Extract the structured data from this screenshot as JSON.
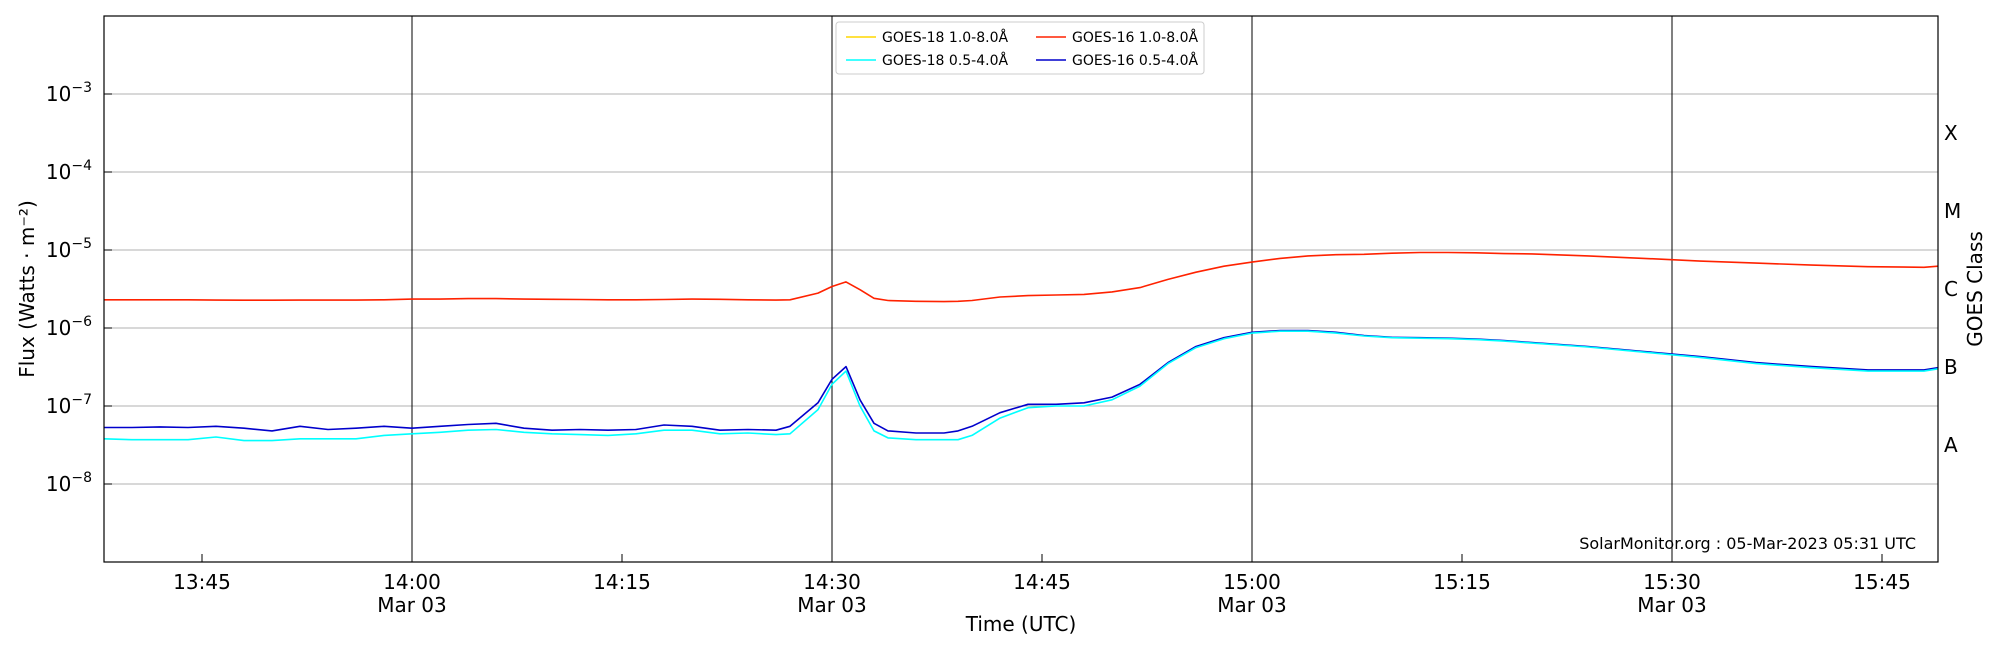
{
  "chart_data": {
    "type": "line",
    "title": "",
    "xlabel": "Time (UTC)",
    "ylabel": "Flux (Watts · m⁻²)",
    "y2label": "GOES Class",
    "yscale": "log",
    "ylim": [
      1e-09,
      0.01
    ],
    "xlim": [
      "13:38",
      "15:49"
    ],
    "grid": "horizontal",
    "legend_position": "top-center",
    "credit": "SolarMonitor.org : 05-Mar-2023 05:31 UTC",
    "x_ticks": [
      {
        "time": "13:45",
        "date": ""
      },
      {
        "time": "14:00",
        "date": "Mar 03"
      },
      {
        "time": "14:15",
        "date": ""
      },
      {
        "time": "14:30",
        "date": "Mar 03"
      },
      {
        "time": "14:45",
        "date": ""
      },
      {
        "time": "15:00",
        "date": "Mar 03"
      },
      {
        "time": "15:15",
        "date": ""
      },
      {
        "time": "15:30",
        "date": "Mar 03"
      },
      {
        "time": "15:45",
        "date": ""
      }
    ],
    "day_lines": [
      "14:00",
      "14:30",
      "15:00",
      "15:30"
    ],
    "y_ticks": [
      {
        "value": 1e-08,
        "base": "10",
        "exp": "−8"
      },
      {
        "value": 1e-07,
        "base": "10",
        "exp": "−7"
      },
      {
        "value": 1e-06,
        "base": "10",
        "exp": "−6"
      },
      {
        "value": 1e-05,
        "base": "10",
        "exp": "−5"
      },
      {
        "value": 0.0001,
        "base": "10",
        "exp": "−4"
      },
      {
        "value": 0.001,
        "base": "10",
        "exp": "−3"
      }
    ],
    "goes_classes": [
      {
        "label": "A",
        "value": 3.16e-08
      },
      {
        "label": "B",
        "value": 3.16e-07
      },
      {
        "label": "C",
        "value": 3.16e-06
      },
      {
        "label": "M",
        "value": 3.16e-05
      },
      {
        "label": "X",
        "value": 0.000316
      }
    ],
    "legend": [
      {
        "name": "GOES-18 1.0-8.0Å",
        "color": "#ffd700"
      },
      {
        "name": "GOES-16 1.0-8.0Å",
        "color": "#ff2200"
      },
      {
        "name": "GOES-18 0.5-4.0Å",
        "color": "#00ffff"
      },
      {
        "name": "GOES-16 0.5-4.0Å",
        "color": "#0000cc"
      }
    ],
    "x": [
      "13:38",
      "13:40",
      "13:42",
      "13:44",
      "13:46",
      "13:48",
      "13:50",
      "13:52",
      "13:54",
      "13:56",
      "13:58",
      "14:00",
      "14:02",
      "14:04",
      "14:06",
      "14:08",
      "14:10",
      "14:12",
      "14:14",
      "14:16",
      "14:18",
      "14:20",
      "14:22",
      "14:24",
      "14:26",
      "14:27",
      "14:29",
      "14:30",
      "14:31",
      "14:32",
      "14:33",
      "14:34",
      "14:36",
      "14:38",
      "14:39",
      "14:40",
      "14:42",
      "14:44",
      "14:46",
      "14:48",
      "14:50",
      "14:52",
      "14:54",
      "14:56",
      "14:58",
      "15:00",
      "15:02",
      "15:04",
      "15:06",
      "15:08",
      "15:10",
      "15:12",
      "15:14",
      "15:16",
      "15:18",
      "15:20",
      "15:24",
      "15:28",
      "15:32",
      "15:36",
      "15:40",
      "15:44",
      "15:48",
      "15:49"
    ],
    "series": [
      {
        "name": "GOES-16 1.0-8.0Å",
        "color": "#ff2200",
        "values": [
          2.3e-06,
          2.3e-06,
          2.3e-06,
          2.3e-06,
          2.28e-06,
          2.27e-06,
          2.27e-06,
          2.28e-06,
          2.28e-06,
          2.28e-06,
          2.3e-06,
          2.35e-06,
          2.35e-06,
          2.38e-06,
          2.38e-06,
          2.35e-06,
          2.33e-06,
          2.32e-06,
          2.3e-06,
          2.3e-06,
          2.32e-06,
          2.35e-06,
          2.33e-06,
          2.3e-06,
          2.28e-06,
          2.3e-06,
          2.8e-06,
          3.4e-06,
          3.9e-06,
          3.1e-06,
          2.4e-06,
          2.25e-06,
          2.2e-06,
          2.18e-06,
          2.2e-06,
          2.25e-06,
          2.5e-06,
          2.6e-06,
          2.65e-06,
          2.7e-06,
          2.9e-06,
          3.3e-06,
          4.2e-06,
          5.2e-06,
          6.2e-06,
          7e-06,
          7.8e-06,
          8.4e-06,
          8.7e-06,
          8.8e-06,
          9.1e-06,
          9.3e-06,
          9.3e-06,
          9.2e-06,
          9e-06,
          8.9e-06,
          8.4e-06,
          7.8e-06,
          7.2e-06,
          6.8e-06,
          6.4e-06,
          6.1e-06,
          6e-06,
          6.2e-06
        ]
      },
      {
        "name": "GOES-16 0.5-4.0Å",
        "color": "#0000cc",
        "values": [
          5.3e-08,
          5.3e-08,
          5.4e-08,
          5.3e-08,
          5.5e-08,
          5.2e-08,
          4.8e-08,
          5.5e-08,
          5e-08,
          5.2e-08,
          5.5e-08,
          5.2e-08,
          5.5e-08,
          5.8e-08,
          6e-08,
          5.2e-08,
          4.9e-08,
          5e-08,
          4.9e-08,
          5e-08,
          5.7e-08,
          5.5e-08,
          4.9e-08,
          5e-08,
          4.9e-08,
          5.5e-08,
          1.1e-07,
          2.2e-07,
          3.2e-07,
          1.2e-07,
          6e-08,
          4.8e-08,
          4.5e-08,
          4.5e-08,
          4.8e-08,
          5.5e-08,
          8.2e-08,
          1.05e-07,
          1.05e-07,
          1.1e-07,
          1.3e-07,
          1.9e-07,
          3.6e-07,
          5.8e-07,
          7.5e-07,
          8.8e-07,
          9.3e-07,
          9.3e-07,
          8.8e-07,
          8e-07,
          7.6e-07,
          7.5e-07,
          7.4e-07,
          7.2e-07,
          6.9e-07,
          6.5e-07,
          5.8e-07,
          5e-07,
          4.3e-07,
          3.6e-07,
          3.2e-07,
          2.9e-07,
          2.9e-07,
          3.1e-07
        ]
      },
      {
        "name": "GOES-18 0.5-4.0Å",
        "color": "#00ffff",
        "values": [
          3.8e-08,
          3.7e-08,
          3.7e-08,
          3.7e-08,
          4e-08,
          3.6e-08,
          3.6e-08,
          3.8e-08,
          3.8e-08,
          3.8e-08,
          4.2e-08,
          4.4e-08,
          4.6e-08,
          4.9e-08,
          5e-08,
          4.6e-08,
          4.4e-08,
          4.3e-08,
          4.2e-08,
          4.4e-08,
          4.9e-08,
          4.9e-08,
          4.4e-08,
          4.5e-08,
          4.3e-08,
          4.4e-08,
          9e-08,
          1.9e-07,
          2.8e-07,
          1e-07,
          4.8e-08,
          3.9e-08,
          3.7e-08,
          3.7e-08,
          3.7e-08,
          4.2e-08,
          7e-08,
          9.5e-08,
          1e-07,
          1e-07,
          1.2e-07,
          1.8e-07,
          3.5e-07,
          5.6e-07,
          7.3e-07,
          8.6e-07,
          9.1e-07,
          9.1e-07,
          8.6e-07,
          7.9e-07,
          7.5e-07,
          7.4e-07,
          7.3e-07,
          7.1e-07,
          6.8e-07,
          6.4e-07,
          5.7e-07,
          4.9e-07,
          4.2e-07,
          3.5e-07,
          3.1e-07,
          2.8e-07,
          2.8e-07,
          3e-07
        ]
      }
    ]
  }
}
